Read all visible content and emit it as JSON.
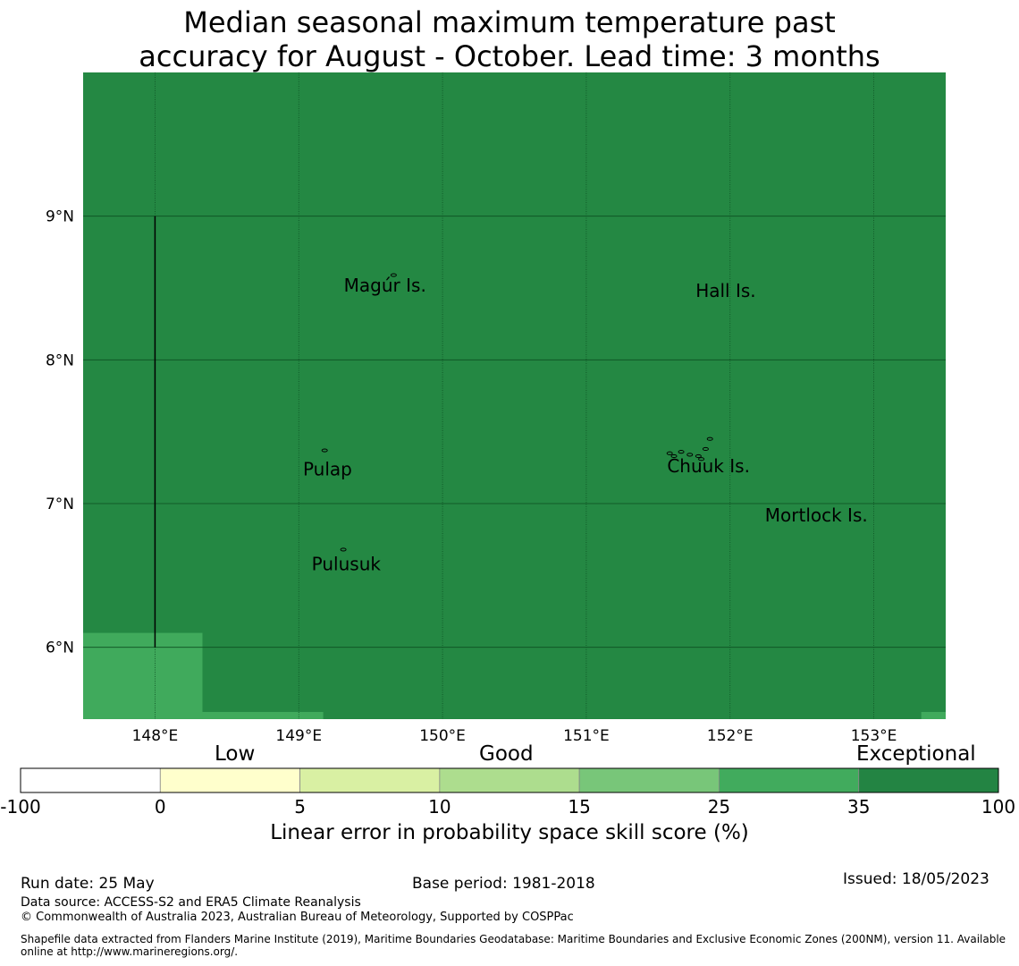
{
  "title_line1": "Median seasonal maximum temperature past",
  "title_line2": "accuracy for August - October. Lead time: 3 months",
  "map": {
    "lon_range": [
      147.5,
      153.5
    ],
    "lat_range": [
      5.5,
      10.0
    ],
    "lon_ticks": [
      148,
      149,
      150,
      151,
      152,
      153
    ],
    "lon_tick_labels": [
      "148°E",
      "149°E",
      "150°E",
      "151°E",
      "152°E",
      "153°E"
    ],
    "lat_ticks": [
      6,
      7,
      8,
      9
    ],
    "lat_tick_labels": [
      "6°N",
      "7°N",
      "8°N",
      "9°N"
    ],
    "background_skill_category": "35 to 100",
    "background_color": "#248843",
    "lower_skill_color": "#40aa5c",
    "lower_skill_areas": [
      {
        "lon": [
          147.5,
          148.33
        ],
        "lat": [
          5.5,
          6.1
        ]
      },
      {
        "lon": [
          148.33,
          149.17
        ],
        "lat": [
          5.5,
          5.55
        ]
      },
      {
        "lon": [
          153.33,
          153.5
        ],
        "lat": [
          5.5,
          5.55
        ]
      }
    ],
    "meridian_line": {
      "lon": 148.0,
      "lat": [
        6.0,
        9.0
      ]
    },
    "places": [
      {
        "name": "Magúr Is.",
        "lon": 149.6,
        "lat": 8.52
      },
      {
        "name": "Hall Is.",
        "lon": 151.97,
        "lat": 8.48
      },
      {
        "name": "Pulap",
        "lon": 149.2,
        "lat": 7.24
      },
      {
        "name": "Chuuk Is.",
        "lon": 151.85,
        "lat": 7.26
      },
      {
        "name": "Mortlock Is.",
        "lon": 152.6,
        "lat": 6.92
      },
      {
        "name": "Pulusuk",
        "lon": 149.33,
        "lat": 6.58
      }
    ]
  },
  "legend": {
    "low_label": "Low",
    "good_label": "Good",
    "exceptional_label": "Exceptional",
    "bins": [
      {
        "from": "-100",
        "to": "0",
        "color": "#ffffff"
      },
      {
        "from": "0",
        "to": "5",
        "color": "#ffffcc"
      },
      {
        "from": "5",
        "to": "10",
        "color": "#d9f0a3"
      },
      {
        "from": "10",
        "to": "15",
        "color": "#addd8e"
      },
      {
        "from": "15",
        "to": "25",
        "color": "#78c679"
      },
      {
        "from": "25",
        "to": "35",
        "color": "#41ab5d"
      },
      {
        "from": "35",
        "to": "100",
        "color": "#238443"
      }
    ],
    "tick_labels": [
      "-100",
      "0",
      "5",
      "10",
      "15",
      "25",
      "35",
      "100"
    ],
    "axis_label": "Linear error in probability space skill score (%)"
  },
  "footer": {
    "run_date": "Run date: 25 May",
    "base_period": "Base period: 1981-2018",
    "issued": "Issued: 18/05/2023",
    "data_source": "Data source: ACCESS-S2 and ERA5 Climate Reanalysis",
    "copyright": "© Commonwealth of Australia 2023, Australian Bureau of Meteorology, Supported by COSPPac",
    "shapefile_line1": "Shapefile data extracted from Flanders Marine Institute (2019), Maritime Boundaries Geodatabase: Maritime Boundaries and Exclusive Economic Zones (200NM), version 11. Available",
    "shapefile_line2": "online at http://www.marineregions.org/."
  }
}
